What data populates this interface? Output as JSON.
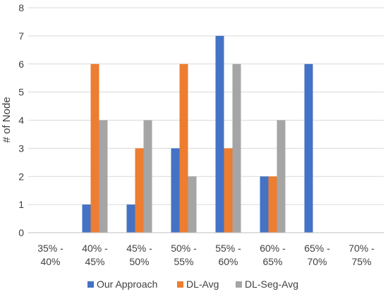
{
  "chart_data": {
    "type": "bar",
    "title": "",
    "xlabel": "",
    "ylabel": "# of Node",
    "ylim": [
      0,
      8
    ],
    "yticks": [
      0,
      1,
      2,
      3,
      4,
      5,
      6,
      7,
      8
    ],
    "grid": "horizontal",
    "legend_position": "bottom",
    "categories": [
      [
        "35% -",
        "40%"
      ],
      [
        "40% -",
        "45%"
      ],
      [
        "45% -",
        "50%"
      ],
      [
        "50% -",
        "55%"
      ],
      [
        "55% -",
        "60%"
      ],
      [
        "60% -",
        "65%"
      ],
      [
        "65% -",
        "70%"
      ],
      [
        "70% -",
        "75%"
      ]
    ],
    "series": [
      {
        "name": "Our Approach",
        "color": "#4472C4",
        "values": [
          0,
          1,
          1,
          3,
          7,
          2,
          6,
          0
        ]
      },
      {
        "name": "DL-Avg",
        "color": "#ED7D31",
        "values": [
          0,
          6,
          3,
          6,
          3,
          2,
          0,
          0
        ]
      },
      {
        "name": "DL-Seg-Avg",
        "color": "#A5A5A5",
        "values": [
          0,
          4,
          4,
          2,
          6,
          4,
          0,
          0
        ]
      }
    ]
  }
}
